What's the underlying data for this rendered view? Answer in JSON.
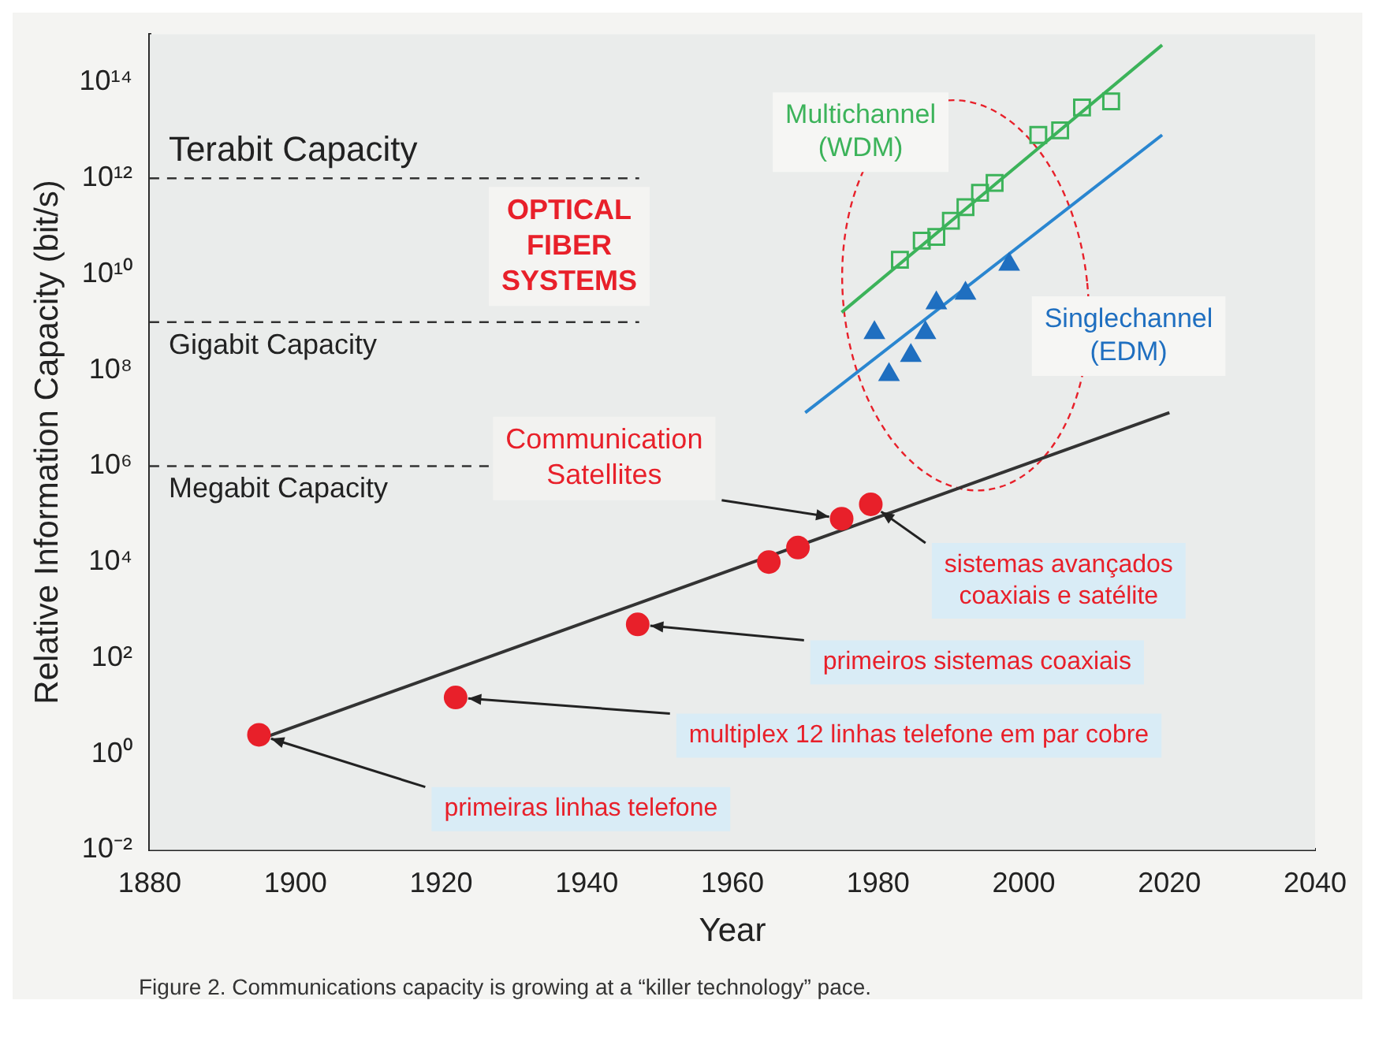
{
  "chart_data": {
    "type": "scatter",
    "xlabel": "Year",
    "ylabel": "Relative Information Capacity (bit/s)",
    "log": "y",
    "grid": false,
    "legend": false,
    "xlim": [
      1880,
      2040
    ],
    "xticks": [
      1880,
      1900,
      1920,
      1940,
      1960,
      1980,
      2000,
      2020,
      2040
    ],
    "ylim": [
      0.01,
      1000000000000000.0
    ],
    "yticks": [
      {
        "value": 0.01,
        "label": "10⁻²"
      },
      {
        "value": 1,
        "label": "10⁰"
      },
      {
        "value": 100,
        "label": "10²"
      },
      {
        "value": 10000,
        "label": "10⁴"
      },
      {
        "value": 1000000,
        "label": "10⁶"
      },
      {
        "value": 100000000,
        "label": "10⁸"
      },
      {
        "value": 10000000000,
        "label": "10¹⁰"
      },
      {
        "value": 1000000000000,
        "label": "10¹²"
      },
      {
        "value": 100000000000000,
        "label": "10¹⁴"
      }
    ],
    "series": [
      {
        "type": "line",
        "color": "#333333",
        "marker": "none",
        "x": [
          1895,
          2020
        ],
        "values": [
          2,
          13000000
        ]
      },
      {
        "type": "line",
        "color": "#2a86d0",
        "marker": "none",
        "x": [
          1970,
          2019
        ],
        "values": [
          13000000,
          8000000000000
        ]
      },
      {
        "type": "line",
        "color": "#3cb35a",
        "marker": "none",
        "x": [
          1975,
          2019
        ],
        "values": [
          1600000000,
          600000000000000
        ]
      },
      {
        "type": "scatter",
        "color": "#e8202a",
        "marker": "circle",
        "x": [
          1895,
          1922,
          1947,
          1965,
          1969,
          1975,
          1979
        ],
        "values": [
          2.5,
          15,
          500,
          10000,
          20000,
          80000,
          160000
        ]
      },
      {
        "type": "scatter",
        "color": "#1f6fc0",
        "marker": "triangle",
        "x": [
          1979.5,
          1981.5,
          1984.5,
          1986.5,
          1988,
          1992,
          1998
        ],
        "values": [
          600000000,
          80000000,
          200000000,
          600000000,
          2500000000,
          4000000000,
          16000000000
        ]
      },
      {
        "type": "scatter",
        "color": "#3cb35a",
        "marker": "square",
        "x": [
          1983,
          1986,
          1988,
          1990,
          1992,
          1994,
          1996,
          2002,
          2005,
          2008,
          2012
        ],
        "values": [
          20000000000,
          50000000000,
          60000000000,
          130000000000,
          250000000000,
          500000000000,
          800000000000,
          8000000000000,
          10000000000000,
          30000000000000,
          40000000000000
        ]
      }
    ],
    "ref_lines": [
      {
        "axis": "y",
        "value": 1000000000000,
        "label": "Terabit Capacity",
        "color": "#333333",
        "line_style": "dashed"
      },
      {
        "axis": "y",
        "value": 1000000000,
        "label": "Gigabit Capacity",
        "color": "#333333",
        "line_style": "dashed"
      },
      {
        "axis": "y",
        "value": 1000000,
        "label": "Megabit Capacity",
        "color": "#333333",
        "line_style": "dashed"
      }
    ],
    "annotations": [
      "OPTICAL FIBER SYSTEMS",
      {
        "text": "Communication Satellites",
        "x": 1975,
        "y": 80000
      },
      {
        "text": "sistemas avançados coaxiais e satélite",
        "x": 1979,
        "y": 160000
      },
      {
        "text": "primeiros sistemas coaxiais",
        "x": 1947,
        "y": 500
      },
      {
        "text": "multiplex 12 linhas telefone em par cobre",
        "x": 1922,
        "y": 15
      },
      {
        "text": "primeiras linhas telefone",
        "x": 1895,
        "y": 2.5
      },
      "Multichannel (WDM)",
      "Singlechannel (EDM)",
      "Figure 2. Communications capacity is growing at a “killer technology” pace."
    ]
  }
}
